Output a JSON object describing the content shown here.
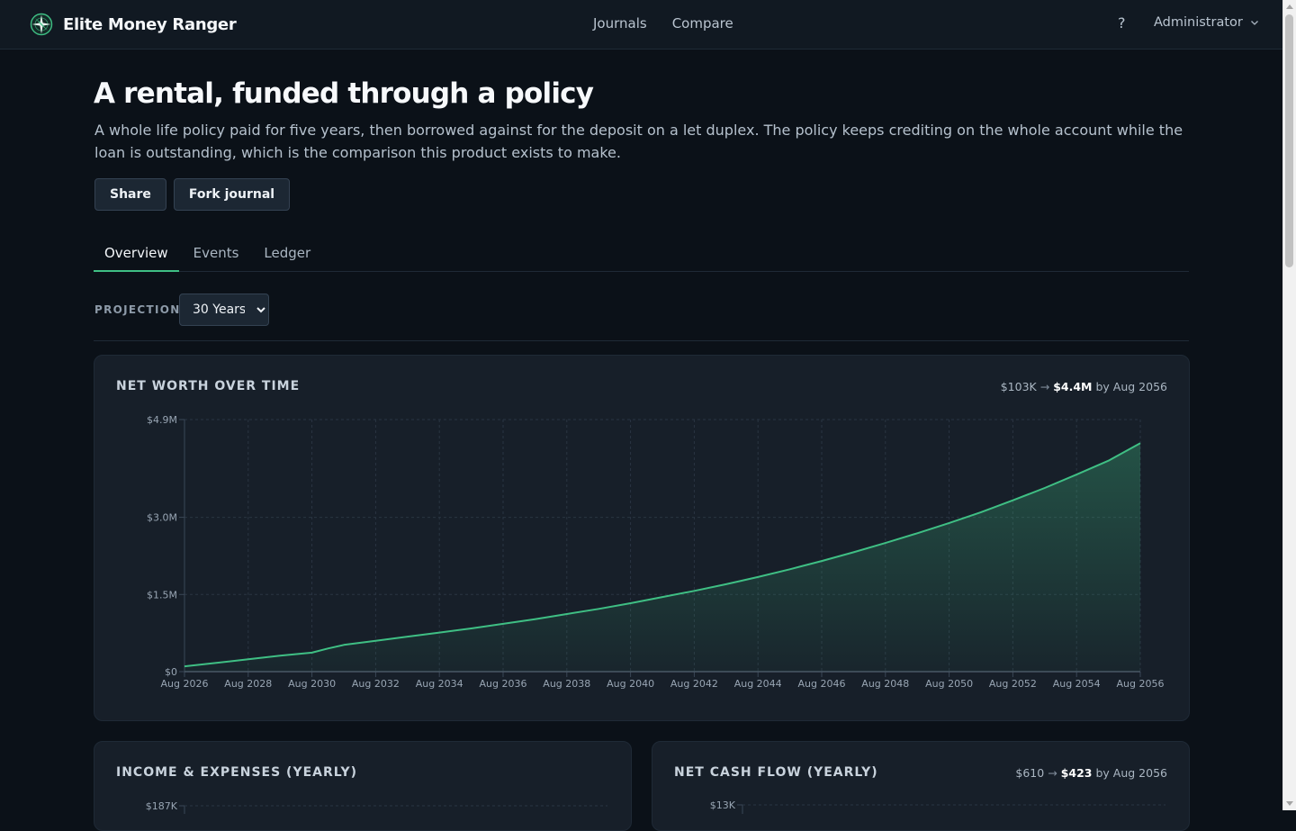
{
  "header": {
    "brand": "Elite Money Ranger",
    "nav": [
      "Journals",
      "Compare"
    ],
    "help": "?",
    "user": "Administrator",
    "icons": {
      "logo": "compass-icon",
      "user_menu": "chevron-down-icon"
    }
  },
  "page": {
    "title": "A rental, funded through a policy",
    "description": "A whole life policy paid for five years, then borrowed against for the deposit on a let duplex. The policy keeps crediting on the whole account while the loan is outstanding, which is the comparison this product exists to make.",
    "actions": {
      "share": "Share",
      "fork": "Fork journal"
    }
  },
  "tabs": {
    "overview": "Overview",
    "events": "Events",
    "ledger": "Ledger",
    "active": "Overview"
  },
  "projection": {
    "label": "PROJECTION",
    "selected": "30 Years"
  },
  "colors": {
    "accent": "#3fbf84",
    "background": "#0b1118",
    "card": "#171f29"
  },
  "cards": {
    "net_worth": {
      "title": "NET WORTH OVER TIME",
      "start": "$103K",
      "arrow": "→",
      "end": "$4.4M",
      "suffix": "by Aug 2056"
    },
    "income_expenses": {
      "title": "INCOME & EXPENSES (YEARLY)",
      "top_tick": "$187K"
    },
    "net_cash_flow": {
      "title": "NET CASH FLOW (YEARLY)",
      "start": "$610",
      "arrow": "→",
      "end": "$423",
      "suffix": "by Aug 2056",
      "top_tick": "$13K"
    }
  },
  "chart_data": [
    {
      "type": "area",
      "title": "NET WORTH OVER TIME",
      "xlabel": "",
      "ylabel": "",
      "x_ticks": [
        "Aug 2026",
        "Aug 2028",
        "Aug 2030",
        "Aug 2032",
        "Aug 2034",
        "Aug 2036",
        "Aug 2038",
        "Aug 2040",
        "Aug 2042",
        "Aug 2044",
        "Aug 2046",
        "Aug 2048",
        "Aug 2050",
        "Aug 2052",
        "Aug 2054",
        "Aug 2056"
      ],
      "y_ticks": [
        {
          "value": 0,
          "label": "$0"
        },
        {
          "value": 1.5,
          "label": "$1.5M"
        },
        {
          "value": 3.0,
          "label": "$3.0M"
        },
        {
          "value": 4.9,
          "label": "$4.9M"
        }
      ],
      "ylim": [
        0,
        4.9
      ],
      "y_unit": "$M",
      "grid": true,
      "x": [
        2026,
        2027,
        2028,
        2029,
        2030,
        2030.5,
        2031,
        2032,
        2033,
        2034,
        2035,
        2036,
        2037,
        2038,
        2039,
        2040,
        2041,
        2042,
        2043,
        2044,
        2045,
        2046,
        2047,
        2048,
        2049,
        2050,
        2051,
        2052,
        2053,
        2054,
        2055,
        2056
      ],
      "values": [
        0.103,
        0.17,
        0.24,
        0.31,
        0.37,
        0.45,
        0.52,
        0.6,
        0.68,
        0.76,
        0.84,
        0.93,
        1.02,
        1.12,
        1.22,
        1.33,
        1.45,
        1.57,
        1.7,
        1.84,
        1.99,
        2.15,
        2.32,
        2.5,
        2.69,
        2.89,
        3.1,
        3.33,
        3.57,
        3.83,
        4.1,
        4.44
      ]
    },
    {
      "type": "bar",
      "title": "INCOME & EXPENSES (YEARLY)",
      "y_ticks": [
        {
          "value": 187,
          "label": "$187K"
        }
      ],
      "y_unit": "$K"
    },
    {
      "type": "bar",
      "title": "NET CASH FLOW (YEARLY)",
      "y_ticks": [
        {
          "value": 13,
          "label": "$13K"
        }
      ],
      "y_unit": "$K"
    }
  ]
}
